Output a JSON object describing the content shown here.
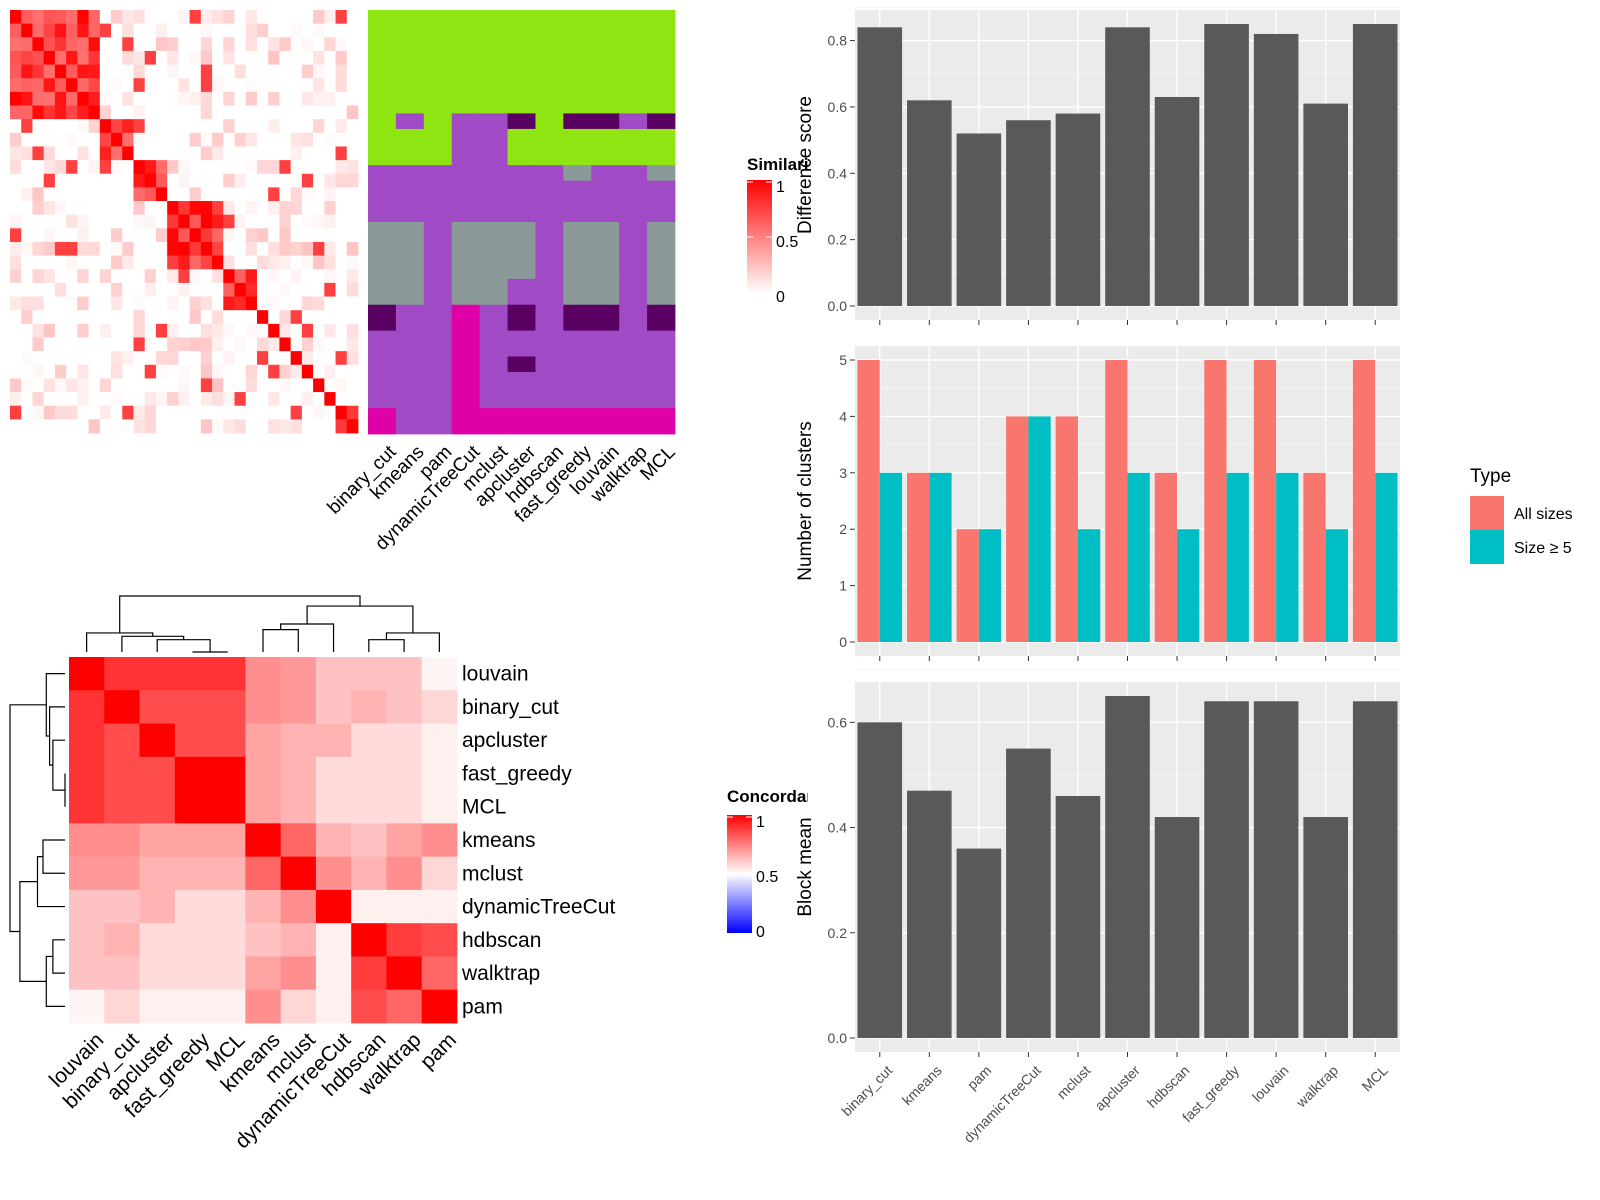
{
  "methods_order": [
    "binary_cut",
    "kmeans",
    "pam",
    "dynamicTreeCut",
    "mclust",
    "apcluster",
    "hdbscan",
    "fast_greedy",
    "louvain",
    "walktrap",
    "MCL"
  ],
  "colors": {
    "heat_high": "#ff0000",
    "heat_mid": "#ffffff",
    "heat_low": "#0000ff",
    "bar_dark": "#595959",
    "bar_all": "#f8766d",
    "bar_size5": "#00bfc4",
    "panel_bg": "#ebebeb",
    "grid": "#ffffff",
    "cl_green": "#8ee511",
    "cl_purple": "#a04ac6",
    "cl_gray": "#8a9a99",
    "cl_dark": "#5a0063",
    "cl_magenta": "#e000a8"
  },
  "similarity_legend": {
    "title": "Similarity",
    "ticks": [
      "1",
      "0.5",
      "0"
    ]
  },
  "concordance_legend": {
    "title": "Concordance",
    "ticks": [
      "1",
      "0.5",
      "0"
    ]
  },
  "similarity_blocks": [
    8,
    3,
    3,
    5,
    3,
    1,
    1,
    1,
    1,
    1,
    1,
    1,
    2
  ],
  "cluster_grid": [
    [
      "green",
      "green",
      "green",
      "green",
      "green",
      "green",
      "green",
      "green",
      "green",
      "green",
      "green"
    ],
    [
      "green",
      "purple",
      "green",
      "purple",
      "purple",
      "dark",
      "green",
      "dark",
      "dark",
      "purple",
      "dark"
    ],
    [
      "green",
      "green",
      "green",
      "purple",
      "purple",
      "green",
      "green",
      "green",
      "green",
      "green",
      "green"
    ],
    [
      "purple",
      "purple",
      "purple",
      "purple",
      "purple",
      "purple",
      "purple",
      "gray",
      "purple",
      "purple",
      "gray"
    ],
    [
      "purple",
      "purple",
      "purple",
      "purple",
      "purple",
      "purple",
      "purple",
      "purple",
      "purple",
      "purple",
      "purple"
    ],
    [
      "gray",
      "gray",
      "purple",
      "gray",
      "gray",
      "gray",
      "purple",
      "gray",
      "gray",
      "purple",
      "gray"
    ],
    [
      "gray",
      "gray",
      "purple",
      "gray",
      "gray",
      "purple",
      "purple",
      "gray",
      "gray",
      "purple",
      "gray"
    ],
    [
      "dark",
      "purple",
      "purple",
      "magenta",
      "purple",
      "dark",
      "purple",
      "dark",
      "dark",
      "purple",
      "dark"
    ],
    [
      "purple",
      "purple",
      "purple",
      "magenta",
      "purple",
      "purple",
      "purple",
      "purple",
      "purple",
      "purple",
      "purple"
    ],
    [
      "purple",
      "purple",
      "purple",
      "magenta",
      "purple",
      "dark",
      "purple",
      "purple",
      "purple",
      "purple",
      "purple"
    ],
    [
      "purple",
      "purple",
      "purple",
      "magenta",
      "purple",
      "purple",
      "purple",
      "purple",
      "purple",
      "purple",
      "purple"
    ],
    [
      "magenta",
      "purple",
      "purple",
      "magenta",
      "magenta",
      "magenta",
      "magenta",
      "magenta",
      "magenta",
      "magenta",
      "magenta"
    ]
  ],
  "cluster_row_heights": [
    1,
    0.15,
    0.35,
    0.15,
    0.4,
    0.55,
    0.25,
    0.25,
    0.25,
    0.15,
    0.35,
    0.25
  ],
  "chart_data": [
    {
      "type": "heatmap",
      "title": "",
      "legend_title": "Concordance",
      "rows": [
        "louvain",
        "binary_cut",
        "apcluster",
        "fast_greedy",
        "MCL",
        "kmeans",
        "mclust",
        "dynamicTreeCut",
        "hdbscan",
        "walktrap",
        "pam"
      ],
      "columns": [
        "louvain",
        "binary_cut",
        "apcluster",
        "fast_greedy",
        "MCL",
        "kmeans",
        "mclust",
        "dynamicTreeCut",
        "hdbscan",
        "walktrap",
        "pam"
      ],
      "values": [
        [
          1.0,
          0.9,
          0.9,
          0.9,
          0.9,
          0.72,
          0.7,
          0.62,
          0.62,
          0.62,
          0.52
        ],
        [
          0.9,
          1.0,
          0.85,
          0.85,
          0.85,
          0.72,
          0.7,
          0.62,
          0.65,
          0.62,
          0.58
        ],
        [
          0.9,
          0.85,
          1.0,
          0.85,
          0.85,
          0.68,
          0.65,
          0.65,
          0.57,
          0.57,
          0.53
        ],
        [
          0.9,
          0.85,
          0.85,
          1.0,
          1.0,
          0.68,
          0.65,
          0.57,
          0.57,
          0.57,
          0.53
        ],
        [
          0.9,
          0.85,
          0.85,
          1.0,
          1.0,
          0.68,
          0.65,
          0.57,
          0.57,
          0.57,
          0.53
        ],
        [
          0.72,
          0.72,
          0.68,
          0.68,
          0.68,
          1.0,
          0.8,
          0.65,
          0.62,
          0.68,
          0.72
        ],
        [
          0.7,
          0.7,
          0.65,
          0.65,
          0.65,
          0.8,
          1.0,
          0.72,
          0.65,
          0.72,
          0.58
        ],
        [
          0.62,
          0.62,
          0.65,
          0.57,
          0.57,
          0.65,
          0.72,
          1.0,
          0.53,
          0.53,
          0.53
        ],
        [
          0.62,
          0.65,
          0.57,
          0.57,
          0.57,
          0.62,
          0.65,
          0.53,
          1.0,
          0.88,
          0.85
        ],
        [
          0.62,
          0.62,
          0.57,
          0.57,
          0.57,
          0.68,
          0.72,
          0.53,
          0.88,
          1.0,
          0.8
        ],
        [
          0.52,
          0.58,
          0.53,
          0.53,
          0.53,
          0.72,
          0.58,
          0.53,
          0.85,
          0.8,
          1.0
        ]
      ]
    },
    {
      "type": "bar",
      "title": "",
      "xlabel": "",
      "ylabel": "Difference score",
      "ylim": [
        0,
        0.85
      ],
      "yticks": [
        "0.0",
        "0.2",
        "0.4",
        "0.6",
        "0.8"
      ],
      "categories": [
        "binary_cut",
        "kmeans",
        "pam",
        "dynamicTreeCut",
        "mclust",
        "apcluster",
        "hdbscan",
        "fast_greedy",
        "louvain",
        "walktrap",
        "MCL"
      ],
      "values": [
        0.84,
        0.62,
        0.52,
        0.56,
        0.58,
        0.84,
        0.63,
        0.85,
        0.82,
        0.61,
        0.85
      ]
    },
    {
      "type": "bar",
      "title": "",
      "xlabel": "",
      "ylabel": "Number of clusters",
      "ylim": [
        0,
        5
      ],
      "yticks": [
        "0",
        "1",
        "2",
        "3",
        "4",
        "5"
      ],
      "legend_title": "Type",
      "legend_position": "right",
      "categories": [
        "binary_cut",
        "kmeans",
        "pam",
        "dynamicTreeCut",
        "mclust",
        "apcluster",
        "hdbscan",
        "fast_greedy",
        "louvain",
        "walktrap",
        "MCL"
      ],
      "series": [
        {
          "name": "All sizes",
          "values": [
            5,
            3,
            2,
            4,
            4,
            5,
            3,
            5,
            5,
            3,
            5
          ]
        },
        {
          "name": "Size ≥ 5",
          "values": [
            3,
            3,
            2,
            4,
            2,
            3,
            2,
            3,
            3,
            2,
            3
          ]
        }
      ]
    },
    {
      "type": "bar",
      "title": "",
      "xlabel": "",
      "ylabel": "Block mean",
      "ylim": [
        0,
        0.65
      ],
      "yticks": [
        "0.0",
        "0.2",
        "0.4",
        "0.6"
      ],
      "categories": [
        "binary_cut",
        "kmeans",
        "pam",
        "dynamicTreeCut",
        "mclust",
        "apcluster",
        "hdbscan",
        "fast_greedy",
        "louvain",
        "walktrap",
        "MCL"
      ],
      "values": [
        0.6,
        0.47,
        0.36,
        0.55,
        0.46,
        0.65,
        0.42,
        0.64,
        0.64,
        0.42,
        0.64
      ]
    }
  ]
}
